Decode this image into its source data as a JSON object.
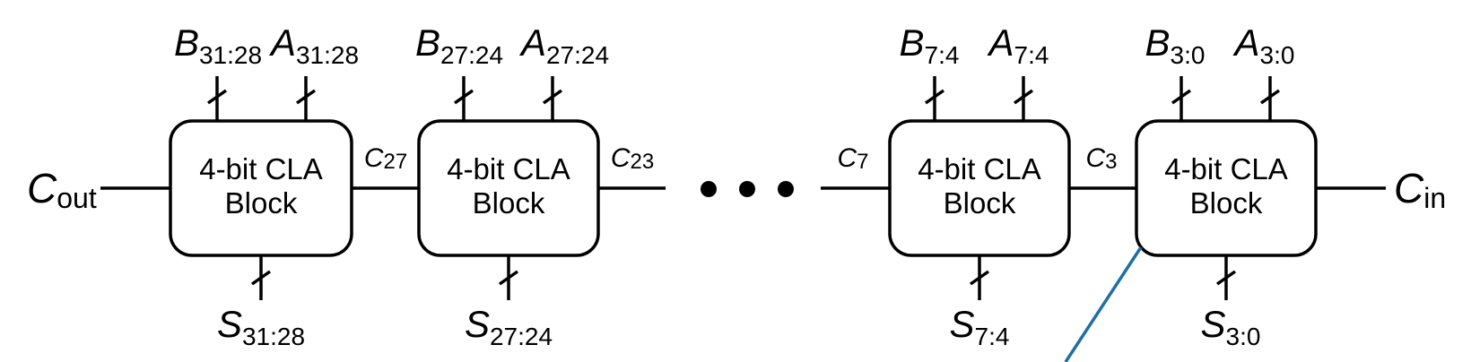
{
  "diagram": {
    "title": "",
    "block_label_line1": "4-bit CLA",
    "block_label_line2": "Block",
    "blocks": [
      {
        "b_sub": "31:28",
        "a_sub": "31:28",
        "s_sub": "31:28"
      },
      {
        "b_sub": "27:24",
        "a_sub": "27:24",
        "s_sub": "27:24"
      },
      {
        "b_sub": "7:4",
        "a_sub": "7:4",
        "s_sub": "7:4"
      },
      {
        "b_sub": "3:0",
        "a_sub": "3:0",
        "s_sub": "3:0"
      }
    ],
    "letters": {
      "b": "B",
      "a": "A",
      "s": "S",
      "c": "C"
    },
    "cout": {
      "base": "C",
      "sub": "out"
    },
    "cin": {
      "base": "C",
      "sub": "in"
    },
    "carries": {
      "c27": {
        "base": "C",
        "sub": "27"
      },
      "c23": {
        "base": "C",
        "sub": "23"
      },
      "c7": {
        "base": "C",
        "sub": "7"
      },
      "c3": {
        "base": "C",
        "sub": "3"
      }
    },
    "ellipsis": "• • •",
    "colors": {
      "stroke": "#000000",
      "callout": "#1f6fa3"
    }
  }
}
